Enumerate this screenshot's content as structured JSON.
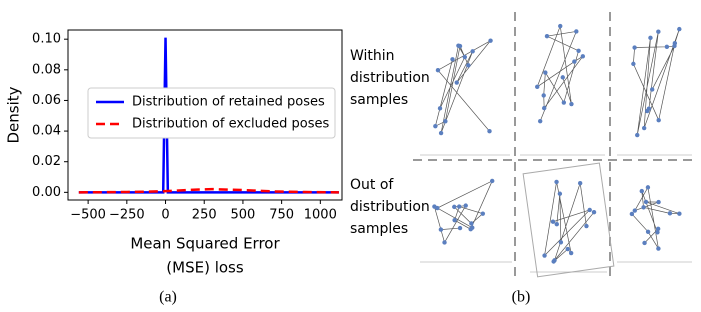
{
  "chart_data": {
    "type": "line",
    "y_label": "Density",
    "x_label": [
      "Mean Squared Error",
      "(MSE) loss"
    ],
    "x": [
      -560,
      -400,
      -200,
      -50,
      -15,
      0,
      15,
      50,
      200,
      300,
      500,
      700,
      900,
      1120
    ],
    "series": [
      {
        "name": "Distribution of retained poses",
        "color": "#0000ff",
        "style": "solid",
        "values": [
          0,
          0,
          0,
          0,
          0,
          0.101,
          0,
          0,
          0,
          0,
          0,
          0,
          0,
          0
        ]
      },
      {
        "name": "Distribution of excluded poses",
        "color": "#ff0000",
        "style": "dashed",
        "values": [
          0,
          0.0001,
          0.0003,
          0.0006,
          0.0007,
          0.0008,
          0.0009,
          0.001,
          0.0018,
          0.0021,
          0.0015,
          0.0006,
          0.0002,
          0
        ]
      }
    ],
    "xlim": [
      -630,
      1140
    ],
    "ylim": [
      -0.005,
      0.106
    ],
    "xticks": [
      {
        "value": -500,
        "label": "−500"
      },
      {
        "value": -250,
        "label": "−250"
      },
      0,
      250,
      500,
      750,
      1000
    ],
    "yticks": [
      {
        "value": 0,
        "label": "0.00"
      },
      {
        "value": 0.02,
        "label": "0.02"
      },
      {
        "value": 0.04,
        "label": "0.04"
      },
      {
        "value": 0.06,
        "label": "0.06"
      },
      {
        "value": 0.08,
        "label": "0.08"
      },
      {
        "value": 0.1,
        "label": "0.10"
      }
    ],
    "legend": "center right",
    "grid": false
  },
  "panel_b": {
    "within": [
      "Within",
      "distribution",
      "samples"
    ],
    "out": [
      "Out of",
      "distribution",
      "samples"
    ]
  },
  "captions": {
    "a": "(a)",
    "b": "(b)"
  }
}
